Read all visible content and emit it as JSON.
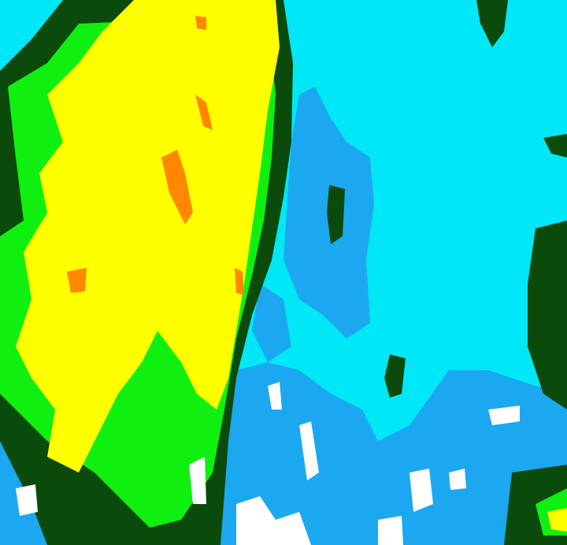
{
  "colors": {
    "background": "#00e8f8",
    "light_blue": "#1ca8f0",
    "dark_green": "#0a4a0a",
    "green": "#10f010",
    "yellow": "#ffff00",
    "orange": "#ff8800",
    "white": "#ffffff"
  }
}
